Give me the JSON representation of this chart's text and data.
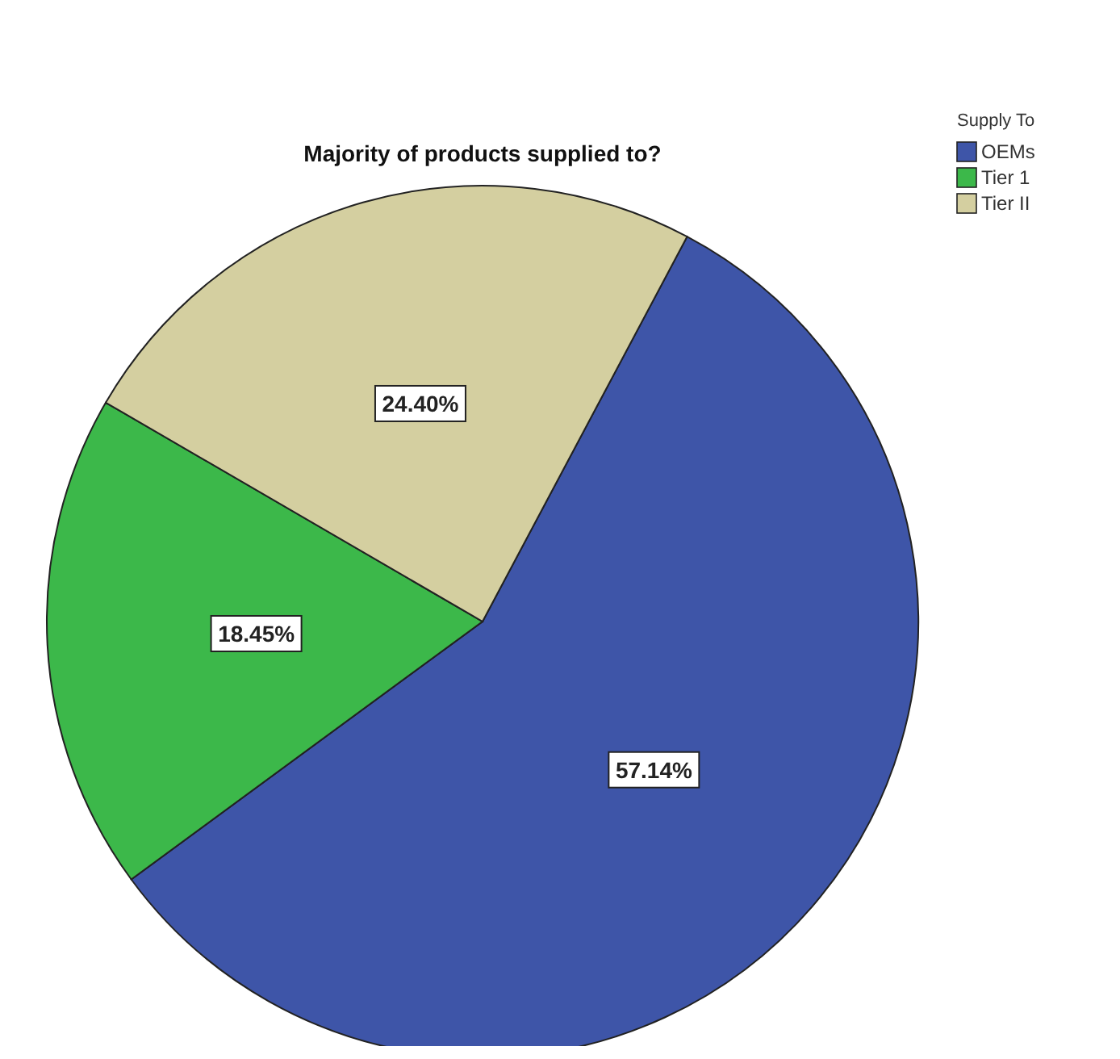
{
  "chart_data": {
    "type": "pie",
    "title": "Majority of products supplied to?",
    "legend_title": "Supply To",
    "legend": "top right",
    "categories": [
      "OEMs",
      "Tier 1",
      "Tier II"
    ],
    "values": [
      57.14,
      18.45,
      24.4
    ],
    "value_labels": [
      "57.14%",
      "18.45%",
      "24.40%"
    ],
    "colors": [
      "#3e55a8",
      "#3cb84a",
      "#d4cfa0"
    ]
  }
}
